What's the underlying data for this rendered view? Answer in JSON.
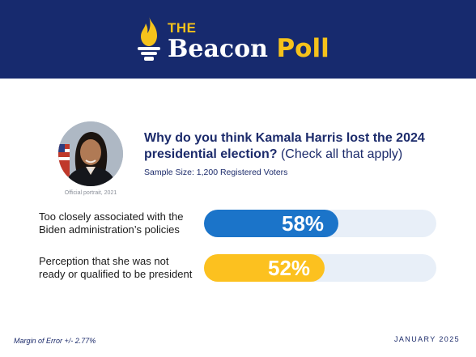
{
  "header": {
    "logo_small": "THE",
    "logo_main": "Beacon",
    "logo_accent": "Poll",
    "bg_color": "#172a6e",
    "accent_color": "#f5c21b"
  },
  "portrait": {
    "caption": "Official portrait, 2021",
    "icon": "portrait-photo"
  },
  "chart_data": {
    "type": "bar",
    "title": "Why do you think Kamala Harris lost the 2024 presidential election?",
    "title_note": "(Check all that apply)",
    "subtitle": "Sample Size: 1,200 Registered Voters",
    "categories": [
      [
        "Too closely associated with the",
        "Biden administration’s policies"
      ],
      [
        "Perception that she was not",
        "ready or qualified to be president"
      ]
    ],
    "values": [
      58,
      52
    ],
    "value_labels": [
      "58%",
      "52%"
    ],
    "colors": [
      "#1b74c9",
      "#fcc11f"
    ],
    "track_color": "#e8eff8",
    "ylim": [
      0,
      100
    ],
    "orientation": "horizontal"
  },
  "footer": {
    "margin_of_error": "Margin of Error +/- 2.77%",
    "date": "JANUARY 2025"
  }
}
